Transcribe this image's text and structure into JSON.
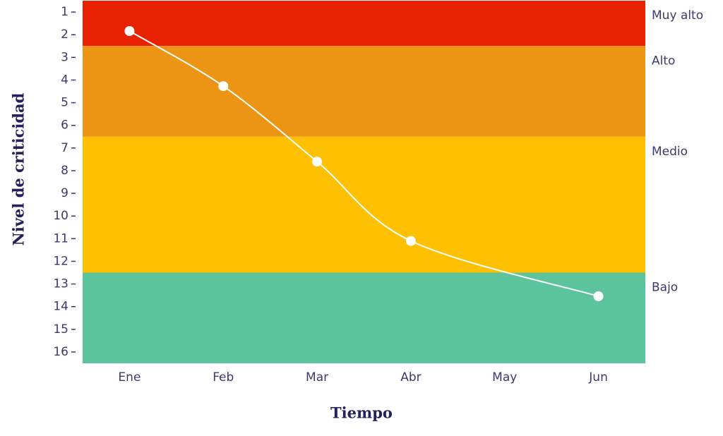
{
  "chart_data": {
    "type": "line",
    "y_label": "Nivel de criticidad",
    "x_label": "Tiempo",
    "categories": [
      "Ene",
      "Feb",
      "Mar",
      "Abr",
      "May",
      "Jun"
    ],
    "ylim": [
      0.5,
      16.5
    ],
    "y_inverted": true,
    "yticks": [
      1,
      2,
      3,
      4,
      5,
      6,
      7,
      8,
      9,
      10,
      11,
      12,
      13,
      14,
      15,
      16
    ],
    "bands": [
      {
        "name": "Muy alto",
        "from": 0.5,
        "to": 2.5,
        "color": "#e82200"
      },
      {
        "name": "Alto",
        "from": 2.5,
        "to": 6.5,
        "color": "#ec9413"
      },
      {
        "name": "Medio",
        "from": 6.5,
        "to": 12.5,
        "color": "#fec000"
      },
      {
        "name": "Bajo",
        "from": 12.5,
        "to": 16.5,
        "color": "#5cc49d"
      }
    ],
    "series": [
      {
        "color": "#ffffff",
        "x": [
          "Ene",
          "Feb",
          "Mar",
          "Abr",
          "Jun"
        ],
        "values": [
          1.84,
          4.27,
          7.6,
          11.1,
          13.54
        ]
      }
    ]
  }
}
